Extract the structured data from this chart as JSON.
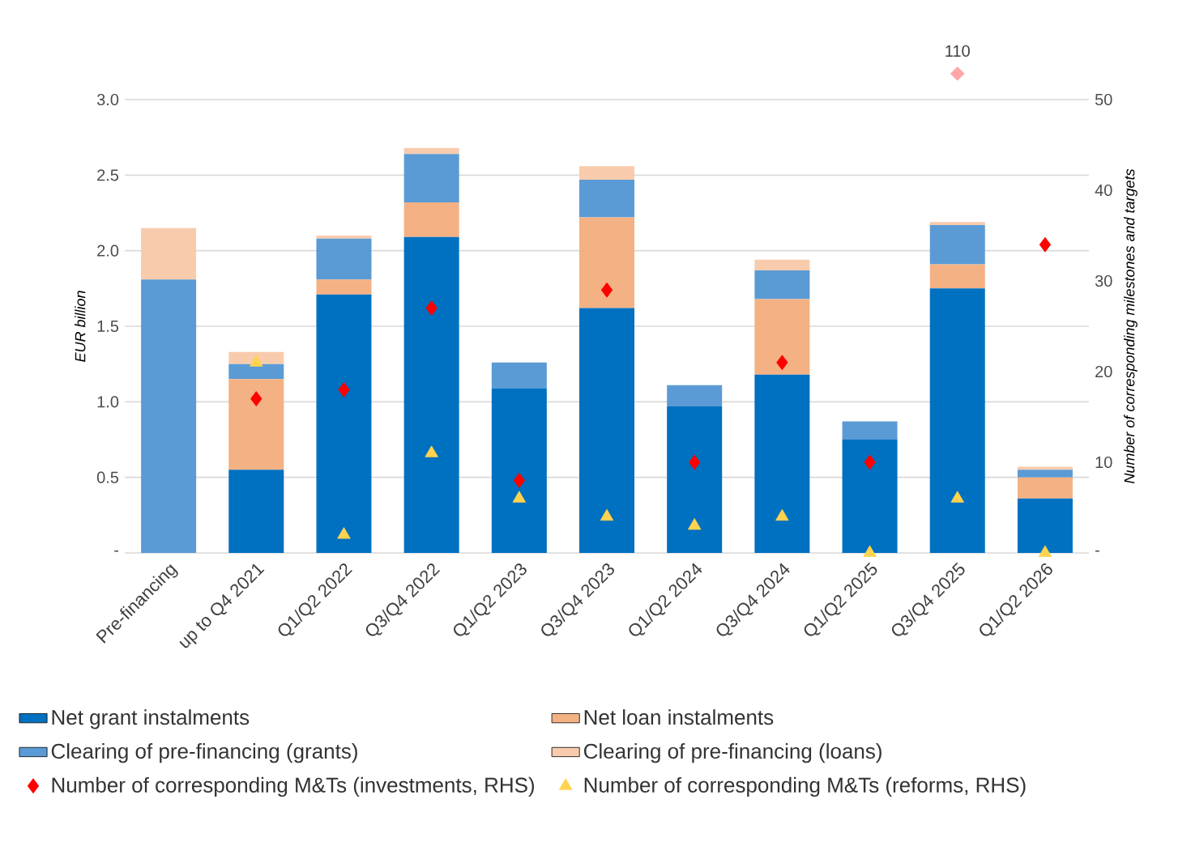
{
  "chart_data": {
    "type": "bar",
    "stacked": true,
    "ylabel": "EUR billion",
    "y2label": "Number of corresponding milestones and targets",
    "categories": [
      "Pre-financing",
      "up to Q4 2021",
      "Q1/Q2 2022",
      "Q3/Q4 2022",
      "Q1/Q2 2023",
      "Q3/Q4 2023",
      "Q1/Q2 2024",
      "Q3/Q4 2024",
      "Q1/Q2 2025",
      "Q3/Q4 2025",
      "Q1/Q2 2026"
    ],
    "ylim": [
      0,
      3
    ],
    "yticks": [
      {
        "value": 0,
        "label": "-"
      },
      {
        "value": 0.5,
        "label": "0.5"
      },
      {
        "value": 1,
        "label": "1.0"
      },
      {
        "value": 1.5,
        "label": "1.5"
      },
      {
        "value": 2,
        "label": "2.0"
      },
      {
        "value": 2.5,
        "label": "2.5"
      },
      {
        "value": 3,
        "label": "3.0"
      }
    ],
    "y2lim": [
      0,
      50
    ],
    "y2ticks": [
      {
        "value": 0,
        "label": "-"
      },
      10,
      20,
      30,
      40,
      50
    ],
    "grid": "y",
    "legend": "bottom",
    "series": [
      {
        "name": "Net grant instalments",
        "color": "#0070c0",
        "values": [
          0,
          0.55,
          1.71,
          2.09,
          1.09,
          1.62,
          0.97,
          1.18,
          0.75,
          1.75,
          0.36
        ]
      },
      {
        "name": "Net loan instalments",
        "color": "#f4b183",
        "values": [
          0,
          0.6,
          0.1,
          0.23,
          0,
          0.6,
          0,
          0.5,
          0,
          0.16,
          0.14
        ]
      },
      {
        "name": "Clearing of pre-financing (grants)",
        "color": "#5b9bd5",
        "values": [
          1.81,
          0.1,
          0.27,
          0.32,
          0.17,
          0.25,
          0.14,
          0.19,
          0.12,
          0.26,
          0.05
        ]
      },
      {
        "name": "Clearing of pre-financing (loans)",
        "color": "#f8cbad",
        "values": [
          0.34,
          0.08,
          0.02,
          0.04,
          0,
          0.09,
          0,
          0.07,
          0,
          0.02,
          0.02
        ]
      },
      {
        "name": "Number of corresponding M&Ts (investments, RHS)",
        "type": "scatter",
        "axis": "y2",
        "marker": "diamond",
        "color": "#ff0000",
        "values": [
          null,
          17,
          18,
          27,
          8,
          29,
          10,
          21,
          10,
          null,
          34
        ]
      },
      {
        "name": "Number of corresponding M&Ts (reforms, RHS)",
        "type": "scatter",
        "axis": "y2",
        "marker": "triangle",
        "color": "#ffd34f",
        "values": [
          null,
          21,
          2,
          11,
          6,
          4,
          3,
          4,
          0,
          6,
          0
        ]
      }
    ],
    "annotations": [
      "110"
    ]
  }
}
